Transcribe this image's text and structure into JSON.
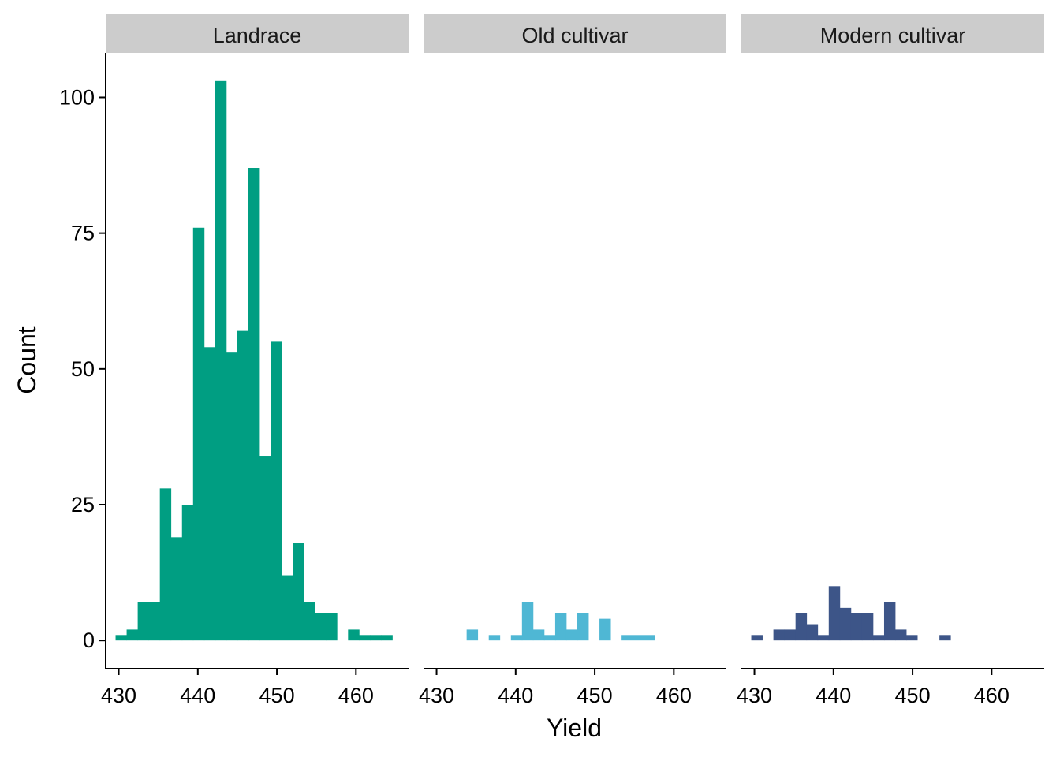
{
  "chart_data": {
    "type": "bar",
    "subtype": "faceted-histogram",
    "xlabel": "Yield",
    "ylabel": "Count",
    "xlim": [
      428.35,
      466.65
    ],
    "ylim": [
      -5.2,
      108.2
    ],
    "x_ticks": [
      430,
      440,
      450,
      460
    ],
    "y_ticks": [
      0,
      25,
      50,
      75,
      100
    ],
    "bin_width": 1.4,
    "bin_start": 429.6,
    "grid": false,
    "legend": "none",
    "panels": [
      {
        "title": "Landrace",
        "color": "#009E82",
        "counts": [
          1,
          2,
          7,
          7,
          28,
          19,
          25,
          76,
          54,
          103,
          53,
          57,
          87,
          34,
          55,
          12,
          18,
          7,
          5,
          5,
          0,
          2,
          1,
          1,
          1
        ]
      },
      {
        "title": "Old cultivar",
        "color": "#4FB7D4",
        "counts": [
          0,
          0,
          0,
          2,
          0,
          1,
          0,
          1,
          7,
          2,
          1,
          5,
          2,
          5,
          0,
          4,
          0,
          1,
          1,
          1,
          0,
          0,
          0,
          0,
          0
        ]
      },
      {
        "title": "Modern cultivar",
        "color": "#3D5588",
        "counts": [
          1,
          0,
          2,
          2,
          5,
          3,
          1,
          10,
          6,
          5,
          5,
          1,
          7,
          2,
          1,
          0,
          0,
          1,
          0,
          0,
          0,
          0,
          0,
          0,
          0
        ]
      }
    ]
  }
}
